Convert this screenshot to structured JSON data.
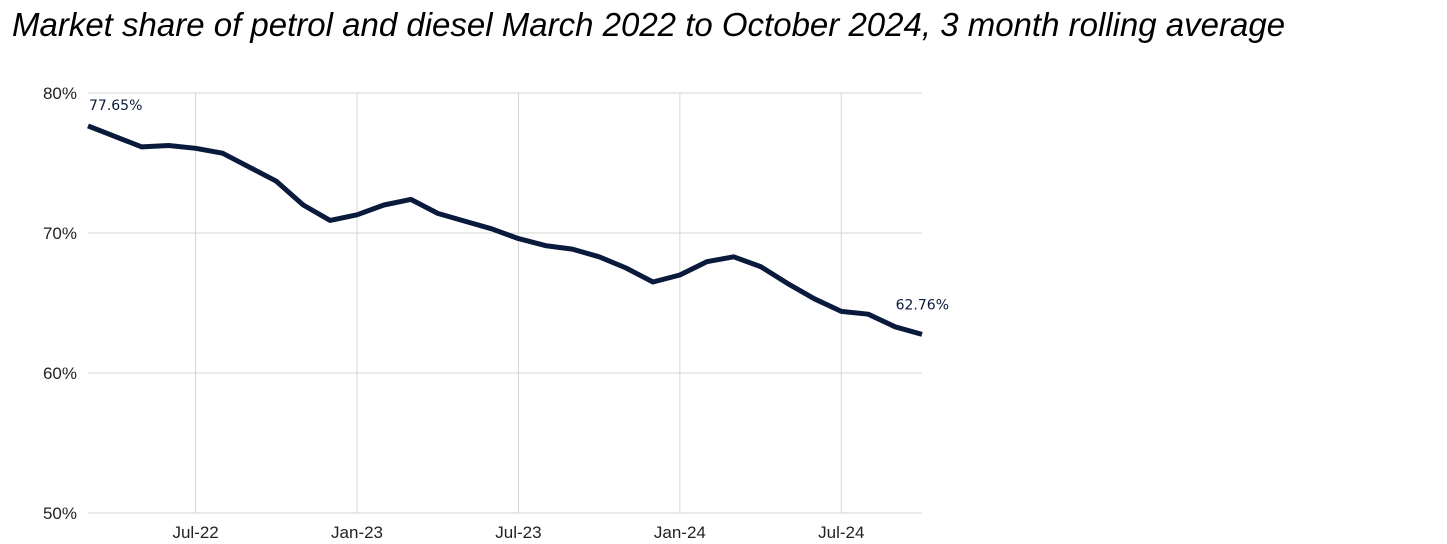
{
  "chart_data": {
    "type": "line",
    "title": "Market share of petrol and diesel March 2022 to October 2024, 3 month rolling average",
    "xlabel": "",
    "ylabel": "",
    "ylim": [
      50,
      80
    ],
    "yticks": [
      "50%",
      "60%",
      "70%",
      "80%"
    ],
    "xticks": [
      {
        "label": "Jul-22",
        "at": "2022-07"
      },
      {
        "label": "Jan-23",
        "at": "2023-01"
      },
      {
        "label": "Jul-23",
        "at": "2023-07"
      },
      {
        "label": "Jan-24",
        "at": "2024-01"
      },
      {
        "label": "Jul-24",
        "at": "2024-07"
      }
    ],
    "grid": true,
    "legend": "none",
    "line_color": "#0a1a3c",
    "x": [
      "2022-03",
      "2022-04",
      "2022-05",
      "2022-06",
      "2022-07",
      "2022-08",
      "2022-09",
      "2022-10",
      "2022-11",
      "2022-12",
      "2023-01",
      "2023-02",
      "2023-03",
      "2023-04",
      "2023-05",
      "2023-06",
      "2023-07",
      "2023-08",
      "2023-09",
      "2023-10",
      "2023-11",
      "2023-12",
      "2024-01",
      "2024-02",
      "2024-03",
      "2024-04",
      "2024-05",
      "2024-06",
      "2024-07",
      "2024-08",
      "2024-09",
      "2024-10"
    ],
    "series": [
      {
        "values": [
          77.65,
          76.9,
          76.15,
          76.25,
          76.05,
          75.7,
          74.7,
          73.7,
          72.0,
          70.9,
          71.3,
          72.0,
          72.4,
          71.4,
          70.85,
          70.3,
          69.6,
          69.1,
          68.85,
          68.3,
          67.5,
          66.5,
          67.0,
          67.95,
          68.3,
          67.6,
          66.4,
          65.3,
          64.4,
          64.2,
          63.3,
          62.76
        ]
      }
    ],
    "data_labels": [
      {
        "index": 0,
        "text": "77.65%"
      },
      {
        "index": 31,
        "text": "62.76%"
      }
    ]
  }
}
